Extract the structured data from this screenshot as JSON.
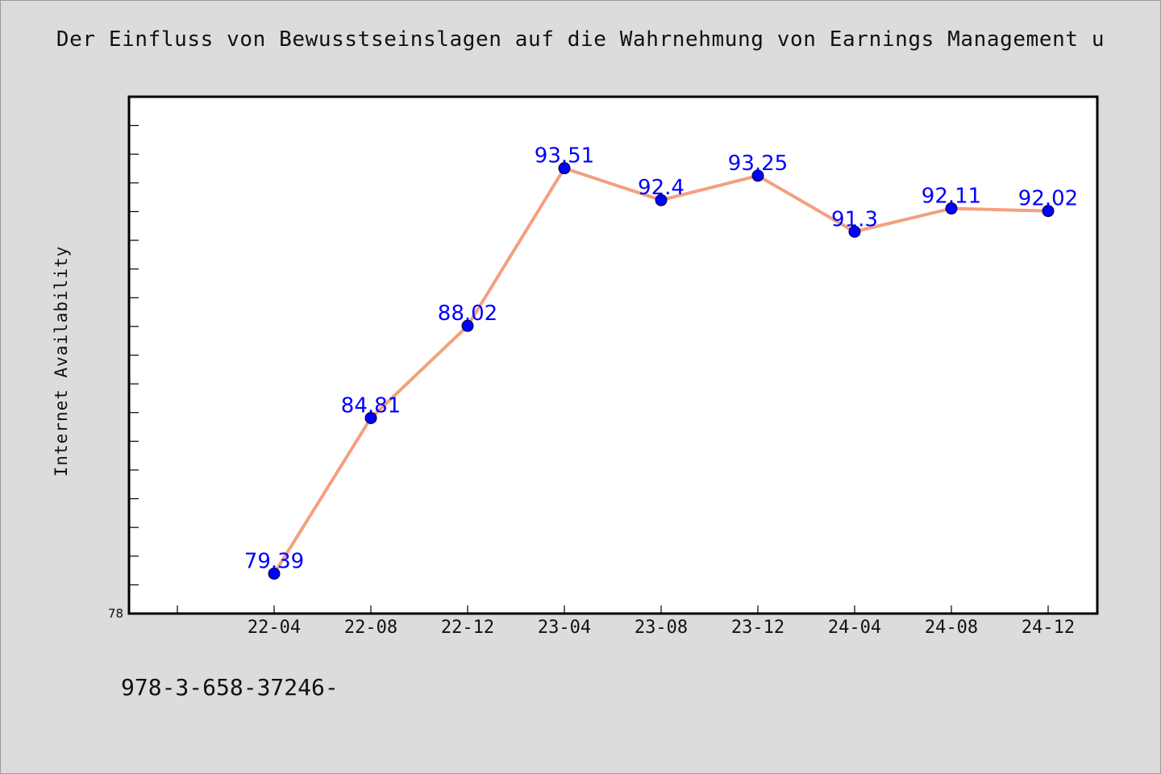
{
  "title": "Der Einfluss von Bewusstseinslagen auf die Wahrnehmung von Earnings Management u",
  "footnote": "978-3-658-37246-",
  "colors": {
    "background": "#dcdcdc",
    "plot_background": "#ffffff",
    "line": "#f4a07e",
    "marker": "#0000ff",
    "data_label": "#0000ff"
  },
  "chart_data": {
    "type": "line",
    "title": "Der Einfluss von Bewusstseinslagen auf die Wahrnehmung von Earnings Management u",
    "xlabel": "",
    "ylabel": "Internet Availability",
    "categories": [
      "22-04",
      "22-08",
      "22-12",
      "23-04",
      "23-08",
      "23-12",
      "24-04",
      "24-08",
      "24-12"
    ],
    "values": [
      79.39,
      84.81,
      88.02,
      93.51,
      92.4,
      93.25,
      91.3,
      92.11,
      92.02
    ],
    "data_labels": [
      "79.39",
      "84.81",
      "88.02",
      "93.51",
      "92.4",
      "93.25",
      "91.3",
      "92.11",
      "92.02"
    ],
    "y_tick_labels": [
      "78"
    ],
    "ylim": [
      78,
      96
    ],
    "y_minor_step": 1,
    "grid": false,
    "legend": "none"
  }
}
